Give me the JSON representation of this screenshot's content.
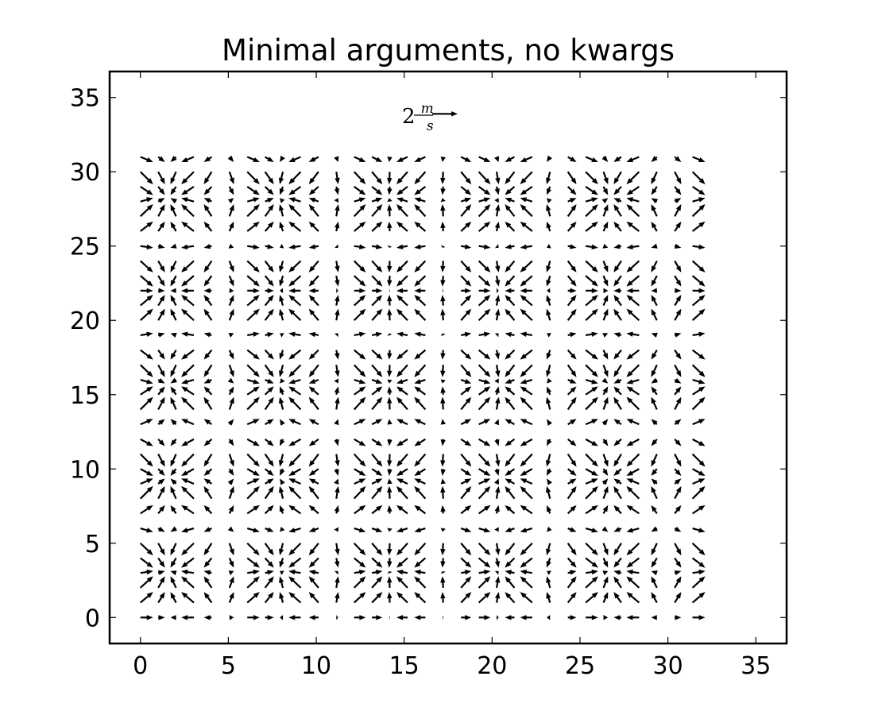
{
  "chart_data": {
    "type": "quiver",
    "title": "Minimal arguments, no kwargs",
    "xlabel": "",
    "ylabel": "",
    "xlim": [
      -1.75,
      36.75
    ],
    "ylim": [
      -1.75,
      36.75
    ],
    "xticks": [
      0,
      5,
      10,
      15,
      20,
      25,
      30,
      35
    ],
    "yticks": [
      0,
      5,
      10,
      15,
      20,
      25,
      30,
      35
    ],
    "grid": false,
    "field": {
      "x": {
        "start": 0,
        "stop": 31.4,
        "count": 32
      },
      "y": {
        "start": 0,
        "stop": 31.0,
        "count": 32
      },
      "u": "cos(x)",
      "v": "sin(y)"
    },
    "key": {
      "value": 2,
      "label_number": "2",
      "label_num": "m",
      "label_den": "s",
      "x_data": 16.6,
      "y_data": 33.9
    },
    "arrow_color": "#000000"
  }
}
